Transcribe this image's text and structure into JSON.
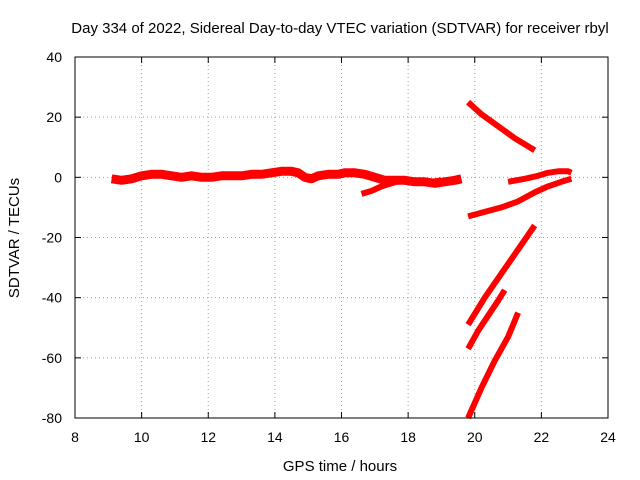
{
  "chart_data": {
    "type": "line",
    "title": "Day 334 of 2022, Sidereal Day-to-day VTEC variation (SDTVAR) for receiver rbyl",
    "xlabel": "GPS time / hours",
    "ylabel": "SDTVAR / TECUs",
    "xlim": [
      8,
      24
    ],
    "ylim": [
      -80,
      40
    ],
    "xticks": [
      8,
      10,
      12,
      14,
      16,
      18,
      20,
      22,
      24
    ],
    "yticks": [
      -80,
      -60,
      -40,
      -20,
      0,
      20,
      40
    ],
    "grid": true,
    "legend": "none",
    "color": "#ff0000",
    "series": [
      {
        "x": [
          9.1,
          9.4,
          9.7,
          10.0,
          10.3,
          10.6,
          10.9,
          11.2,
          11.5,
          11.8,
          12.1,
          12.4,
          12.7,
          13.0,
          13.3,
          13.6,
          13.9,
          14.2,
          14.5,
          14.7,
          14.9,
          15.1,
          15.3,
          15.6,
          15.9,
          16.1,
          16.4,
          16.7,
          17.0,
          17.3,
          17.6,
          17.9,
          18.2,
          18.5,
          18.8,
          19.1,
          19.4,
          19.6
        ],
        "y": [
          -0.5,
          -1.0,
          -0.5,
          0.5,
          1.0,
          1.0,
          0.5,
          0.0,
          0.5,
          0.0,
          0.0,
          0.5,
          0.5,
          0.5,
          1.0,
          1.0,
          1.5,
          2.0,
          2.0,
          1.5,
          0.0,
          -0.5,
          0.5,
          1.0,
          1.0,
          1.5,
          1.5,
          1.0,
          0.0,
          -1.0,
          -1.0,
          -1.0,
          -1.5,
          -1.5,
          -2.0,
          -1.5,
          -1.0,
          -0.5
        ]
      },
      {
        "x": [
          16.6,
          16.9,
          17.2,
          17.5,
          17.8,
          18.1,
          18.4,
          18.7,
          19.0
        ],
        "y": [
          -5.5,
          -4.5,
          -3.0,
          -2.0,
          -1.0,
          -1.0,
          -1.5,
          -1.5,
          -1.0
        ]
      },
      {
        "x": [
          19.8,
          20.2,
          20.7,
          21.2,
          21.8
        ],
        "y": [
          25.0,
          21.0,
          17.0,
          13.0,
          9.0
        ]
      },
      {
        "x": [
          19.8,
          20.3,
          20.8,
          21.3,
          21.8,
          22.2,
          22.6,
          22.9
        ],
        "y": [
          -13.0,
          -11.5,
          -10.0,
          -8.0,
          -5.0,
          -3.0,
          -1.5,
          -0.5
        ]
      },
      {
        "x": [
          21.0,
          21.5,
          21.9,
          22.2,
          22.5,
          22.8,
          22.9
        ],
        "y": [
          -1.5,
          -0.5,
          0.5,
          1.5,
          2.0,
          2.0,
          1.5
        ]
      },
      {
        "x": [
          19.8,
          20.3,
          20.8,
          21.3,
          21.8
        ],
        "y": [
          -49.0,
          -40.0,
          -32.0,
          -24.0,
          -16.0
        ]
      },
      {
        "x": [
          19.8,
          20.1,
          20.4,
          20.7,
          20.9
        ],
        "y": [
          -57.0,
          -51.0,
          -46.0,
          -41.0,
          -37.5
        ]
      },
      {
        "x": [
          19.8,
          20.2,
          20.6,
          21.0,
          21.3
        ],
        "y": [
          -80.0,
          -70.0,
          -61.0,
          -53.0,
          -45.0
        ]
      }
    ]
  }
}
